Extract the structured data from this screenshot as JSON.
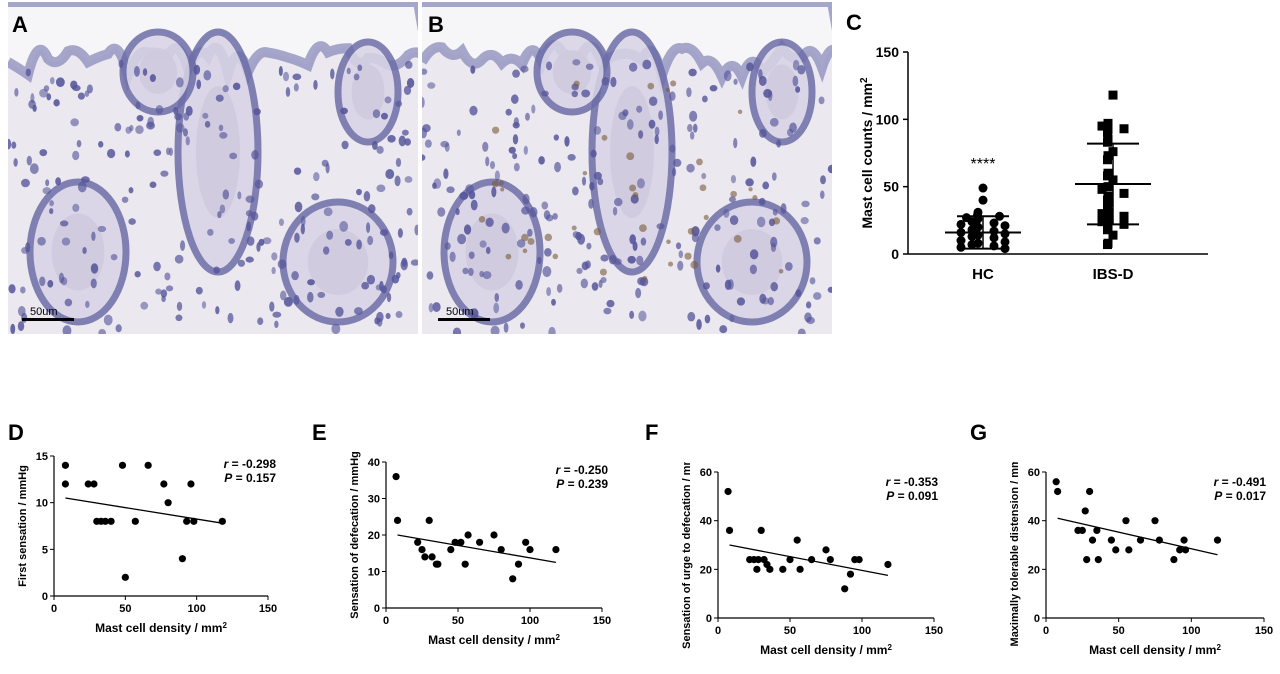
{
  "panels": {
    "A": {
      "letter": "A",
      "scale_bar": "50um"
    },
    "B": {
      "letter": "B",
      "scale_bar": "50um"
    },
    "C": {
      "letter": "C"
    },
    "D": {
      "letter": "D"
    },
    "E": {
      "letter": "E"
    },
    "F": {
      "letter": "F"
    },
    "G": {
      "letter": "G"
    }
  },
  "colors": {
    "tissue_bg": "#d9d6e6",
    "nuclei": "#4f4f94",
    "mast_cell_stain": "#7a5a3a",
    "marker": "#000000"
  },
  "chart_data": [
    {
      "id": "C",
      "type": "scatter",
      "ylabel": "Mast cell counts / mm²",
      "categories": [
        "HC",
        "IBS-D"
      ],
      "ylim": [
        0,
        150
      ],
      "yticks": [
        0,
        50,
        100,
        150
      ],
      "annotation": "****",
      "series": [
        {
          "values": [
            49,
            40,
            31,
            29,
            28,
            27,
            26,
            24,
            23,
            22,
            21,
            20,
            18,
            17,
            16,
            15,
            14,
            13,
            12,
            10,
            9,
            8,
            7,
            6,
            5,
            4
          ],
          "mean": 16,
          "sd_low": 4,
          "sd_high": 28
        },
        {
          "values": [
            118,
            97,
            95,
            93,
            92,
            90,
            85,
            83,
            76,
            73,
            70,
            60,
            58,
            55,
            50,
            48,
            45,
            43,
            40,
            38,
            35,
            31,
            30,
            28,
            26,
            24,
            22,
            20,
            18,
            14,
            8,
            7
          ],
          "mean": 52,
          "sd_low": 22,
          "sd_high": 82
        }
      ]
    },
    {
      "id": "D",
      "type": "scatter",
      "xlabel": "Mast cell density / mm²",
      "ylabel": "First sensation / mmHg",
      "xlim": [
        0,
        150
      ],
      "ylim": [
        0,
        15
      ],
      "xticks": [
        0,
        50,
        100,
        150
      ],
      "yticks": [
        0,
        5,
        10,
        15
      ],
      "stats": {
        "r_label": "r =",
        "r_value": "-0.298",
        "p_label": "P =",
        "p_value": "0.157"
      },
      "fit": {
        "x": [
          8,
          118
        ],
        "y": [
          10.5,
          7.8
        ]
      },
      "points": {
        "x": [
          8,
          8,
          24,
          28,
          30,
          33,
          36,
          40,
          48,
          50,
          57,
          66,
          77,
          80,
          90,
          93,
          96,
          98,
          118
        ],
        "y": [
          14,
          12,
          12,
          12,
          8,
          8,
          8,
          8,
          14,
          2,
          8,
          14,
          12,
          10,
          4,
          8,
          12,
          8,
          8
        ]
      }
    },
    {
      "id": "E",
      "type": "scatter",
      "xlabel": "Mast cell density / mm²",
      "ylabel": "Sensation of defecation / mmHg",
      "xlim": [
        0,
        150
      ],
      "ylim": [
        0,
        40
      ],
      "xticks": [
        0,
        50,
        100,
        150
      ],
      "yticks": [
        0,
        10,
        20,
        30,
        40
      ],
      "stats": {
        "r_label": "r =",
        "r_value": "-0.250",
        "p_label": "P =",
        "p_value": "0.239"
      },
      "fit": {
        "x": [
          8,
          118
        ],
        "y": [
          20,
          12.5
        ]
      },
      "points": {
        "x": [
          7,
          8,
          22,
          25,
          27,
          30,
          32,
          35,
          36,
          45,
          48,
          52,
          55,
          57,
          65,
          75,
          80,
          88,
          92,
          97,
          100,
          118
        ],
        "y": [
          36,
          24,
          18,
          16,
          14,
          24,
          14,
          12,
          12,
          16,
          18,
          18,
          12,
          20,
          18,
          20,
          16,
          8,
          12,
          18,
          16,
          16
        ]
      }
    },
    {
      "id": "F",
      "type": "scatter",
      "xlabel": "Mast cell density / mm²",
      "ylabel": "Sensation of urge to defecation / mmHg",
      "xlim": [
        0,
        150
      ],
      "ylim": [
        0,
        60
      ],
      "xticks": [
        0,
        50,
        100,
        150
      ],
      "yticks": [
        0,
        20,
        40,
        60
      ],
      "stats": {
        "r_label": "r =",
        "r_value": "-0.353",
        "p_label": "P =",
        "p_value": "0.091"
      },
      "fit": {
        "x": [
          8,
          118
        ],
        "y": [
          30,
          17.5
        ]
      },
      "points": {
        "x": [
          7,
          8,
          22,
          25,
          27,
          28,
          30,
          32,
          34,
          36,
          45,
          50,
          55,
          57,
          65,
          75,
          78,
          88,
          92,
          95,
          98,
          118
        ],
        "y": [
          52,
          36,
          24,
          24,
          20,
          24,
          36,
          24,
          22,
          20,
          20,
          24,
          32,
          20,
          24,
          28,
          24,
          12,
          18,
          24,
          24,
          22
        ]
      }
    },
    {
      "id": "G",
      "type": "scatter",
      "xlabel": "Mast cell density / mm²",
      "ylabel": "Maximally tolerable distension / mmHg",
      "xlim": [
        0,
        150
      ],
      "ylim": [
        0,
        60
      ],
      "xticks": [
        0,
        50,
        100,
        150
      ],
      "yticks": [
        0,
        20,
        40,
        60
      ],
      "stats": {
        "r_label": "r =",
        "r_value": "-0.491",
        "p_label": "P =",
        "p_value": "0.017"
      },
      "fit": {
        "x": [
          8,
          118
        ],
        "y": [
          41,
          26
        ]
      },
      "points": {
        "x": [
          7,
          8,
          22,
          25,
          27,
          28,
          30,
          32,
          35,
          36,
          45,
          48,
          55,
          57,
          65,
          75,
          78,
          88,
          92,
          95,
          96,
          118
        ],
        "y": [
          56,
          52,
          36,
          36,
          44,
          24,
          52,
          32,
          36,
          24,
          32,
          28,
          40,
          28,
          32,
          40,
          32,
          24,
          28,
          32,
          28,
          32
        ]
      }
    }
  ]
}
